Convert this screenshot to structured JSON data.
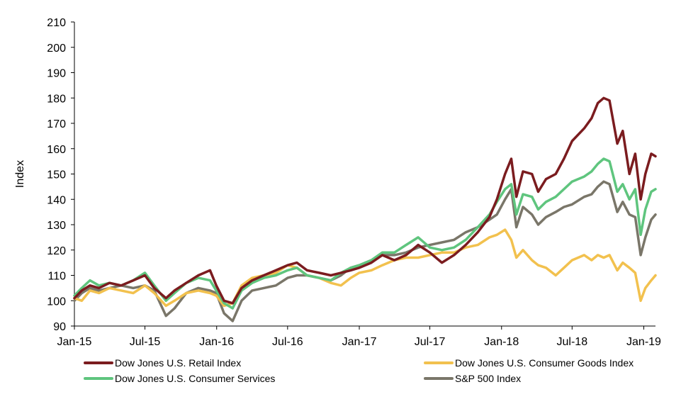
{
  "chart_data": {
    "type": "line",
    "title": "",
    "xlabel": "",
    "ylabel": "Index",
    "ylim": [
      90,
      210
    ],
    "yticks": [
      90,
      100,
      110,
      120,
      130,
      140,
      150,
      160,
      170,
      180,
      190,
      200,
      210
    ],
    "xlim": [
      "2015-01-01",
      "2019-01-31"
    ],
    "xtick_labels": [
      "Jan-15",
      "Jul-15",
      "Jan-16",
      "Jul-16",
      "Jan-17",
      "Jul-17",
      "Jan-18",
      "Jul-18",
      "Jan-19"
    ],
    "xtick_dates": [
      "2015-01-01",
      "2015-07-01",
      "2016-01-01",
      "2016-07-01",
      "2017-01-01",
      "2017-07-01",
      "2018-01-01",
      "2018-07-01",
      "2019-01-01"
    ],
    "grid": false,
    "legend_position": "bottom",
    "series": [
      {
        "name": "Dow Jones U.S. Retail Index",
        "color": "#7b1c1f",
        "points": [
          [
            "2015-01-01",
            101
          ],
          [
            "2015-01-20",
            104
          ],
          [
            "2015-02-10",
            106
          ],
          [
            "2015-03-05",
            105
          ],
          [
            "2015-04-01",
            107
          ],
          [
            "2015-05-01",
            106
          ],
          [
            "2015-06-01",
            108
          ],
          [
            "2015-07-01",
            110
          ],
          [
            "2015-07-25",
            105
          ],
          [
            "2015-08-24",
            101
          ],
          [
            "2015-09-15",
            104
          ],
          [
            "2015-10-15",
            107
          ],
          [
            "2015-11-15",
            110
          ],
          [
            "2015-12-15",
            112
          ],
          [
            "2015-12-31",
            106
          ],
          [
            "2016-01-20",
            100
          ],
          [
            "2016-02-11",
            99
          ],
          [
            "2016-03-05",
            105
          ],
          [
            "2016-04-01",
            108
          ],
          [
            "2016-05-01",
            110
          ],
          [
            "2016-06-01",
            112
          ],
          [
            "2016-07-01",
            114
          ],
          [
            "2016-07-25",
            115
          ],
          [
            "2016-08-20",
            112
          ],
          [
            "2016-09-20",
            111
          ],
          [
            "2016-10-20",
            110
          ],
          [
            "2016-11-15",
            111
          ],
          [
            "2016-12-10",
            112
          ],
          [
            "2017-01-01",
            113
          ],
          [
            "2017-02-01",
            115
          ],
          [
            "2017-03-01",
            118
          ],
          [
            "2017-04-01",
            116
          ],
          [
            "2017-05-01",
            118
          ],
          [
            "2017-06-01",
            122
          ],
          [
            "2017-07-01",
            119
          ],
          [
            "2017-08-01",
            115
          ],
          [
            "2017-09-01",
            118
          ],
          [
            "2017-10-01",
            122
          ],
          [
            "2017-11-01",
            127
          ],
          [
            "2017-12-01",
            133
          ],
          [
            "2017-12-20",
            140
          ],
          [
            "2018-01-10",
            150
          ],
          [
            "2018-01-26",
            156
          ],
          [
            "2018-02-08",
            141
          ],
          [
            "2018-02-25",
            151
          ],
          [
            "2018-03-20",
            150
          ],
          [
            "2018-04-05",
            143
          ],
          [
            "2018-04-25",
            148
          ],
          [
            "2018-05-20",
            150
          ],
          [
            "2018-06-10",
            156
          ],
          [
            "2018-07-01",
            163
          ],
          [
            "2018-08-01",
            168
          ],
          [
            "2018-08-20",
            172
          ],
          [
            "2018-09-05",
            178
          ],
          [
            "2018-09-20",
            180
          ],
          [
            "2018-10-05",
            179
          ],
          [
            "2018-10-25",
            162
          ],
          [
            "2018-11-08",
            167
          ],
          [
            "2018-11-25",
            150
          ],
          [
            "2018-12-10",
            158
          ],
          [
            "2018-12-24",
            140
          ],
          [
            "2019-01-05",
            150
          ],
          [
            "2019-01-20",
            158
          ],
          [
            "2019-01-31",
            157
          ]
        ]
      },
      {
        "name": "Dow Jones U.S. Consumer Goods Index",
        "color": "#f2c14e",
        "points": [
          [
            "2015-01-01",
            101
          ],
          [
            "2015-01-20",
            100
          ],
          [
            "2015-02-10",
            104
          ],
          [
            "2015-03-05",
            103
          ],
          [
            "2015-04-01",
            105
          ],
          [
            "2015-05-01",
            104
          ],
          [
            "2015-06-01",
            103
          ],
          [
            "2015-07-01",
            106
          ],
          [
            "2015-07-25",
            103
          ],
          [
            "2015-08-24",
            98
          ],
          [
            "2015-09-15",
            100
          ],
          [
            "2015-10-15",
            103
          ],
          [
            "2015-11-15",
            104
          ],
          [
            "2015-12-15",
            103
          ],
          [
            "2015-12-31",
            102
          ],
          [
            "2016-01-20",
            98
          ],
          [
            "2016-02-11",
            99
          ],
          [
            "2016-03-05",
            106
          ],
          [
            "2016-04-01",
            109
          ],
          [
            "2016-05-01",
            110
          ],
          [
            "2016-06-01",
            111
          ],
          [
            "2016-07-01",
            114
          ],
          [
            "2016-07-25",
            113
          ],
          [
            "2016-08-20",
            110
          ],
          [
            "2016-09-20",
            109
          ],
          [
            "2016-10-20",
            107
          ],
          [
            "2016-11-15",
            106
          ],
          [
            "2016-12-10",
            109
          ],
          [
            "2017-01-01",
            111
          ],
          [
            "2017-02-01",
            112
          ],
          [
            "2017-03-01",
            114
          ],
          [
            "2017-04-01",
            116
          ],
          [
            "2017-05-01",
            117
          ],
          [
            "2017-06-01",
            117
          ],
          [
            "2017-07-01",
            118
          ],
          [
            "2017-08-01",
            119
          ],
          [
            "2017-09-01",
            119
          ],
          [
            "2017-10-01",
            121
          ],
          [
            "2017-11-01",
            122
          ],
          [
            "2017-12-01",
            125
          ],
          [
            "2017-12-20",
            126
          ],
          [
            "2018-01-10",
            128
          ],
          [
            "2018-01-26",
            124
          ],
          [
            "2018-02-08",
            117
          ],
          [
            "2018-02-25",
            120
          ],
          [
            "2018-03-20",
            116
          ],
          [
            "2018-04-05",
            114
          ],
          [
            "2018-04-25",
            113
          ],
          [
            "2018-05-20",
            110
          ],
          [
            "2018-06-10",
            113
          ],
          [
            "2018-07-01",
            116
          ],
          [
            "2018-08-01",
            118
          ],
          [
            "2018-08-20",
            116
          ],
          [
            "2018-09-05",
            118
          ],
          [
            "2018-09-20",
            117
          ],
          [
            "2018-10-05",
            118
          ],
          [
            "2018-10-25",
            112
          ],
          [
            "2018-11-08",
            115
          ],
          [
            "2018-11-25",
            113
          ],
          [
            "2018-12-10",
            111
          ],
          [
            "2018-12-24",
            100
          ],
          [
            "2019-01-05",
            105
          ],
          [
            "2019-01-20",
            108
          ],
          [
            "2019-01-31",
            110
          ]
        ]
      },
      {
        "name": "Dow Jones U.S. Consumer Services",
        "color": "#5fc57e",
        "points": [
          [
            "2015-01-01",
            102
          ],
          [
            "2015-01-20",
            105
          ],
          [
            "2015-02-10",
            108
          ],
          [
            "2015-03-05",
            106
          ],
          [
            "2015-04-01",
            107
          ],
          [
            "2015-05-01",
            106
          ],
          [
            "2015-06-01",
            108
          ],
          [
            "2015-07-01",
            111
          ],
          [
            "2015-07-25",
            106
          ],
          [
            "2015-08-24",
            100
          ],
          [
            "2015-09-15",
            103
          ],
          [
            "2015-10-15",
            107
          ],
          [
            "2015-11-15",
            109
          ],
          [
            "2015-12-15",
            108
          ],
          [
            "2015-12-31",
            104
          ],
          [
            "2016-01-20",
            99
          ],
          [
            "2016-02-11",
            97
          ],
          [
            "2016-03-05",
            104
          ],
          [
            "2016-04-01",
            107
          ],
          [
            "2016-05-01",
            109
          ],
          [
            "2016-06-01",
            110
          ],
          [
            "2016-07-01",
            112
          ],
          [
            "2016-07-25",
            113
          ],
          [
            "2016-08-20",
            110
          ],
          [
            "2016-09-20",
            109
          ],
          [
            "2016-10-20",
            108
          ],
          [
            "2016-11-15",
            111
          ],
          [
            "2016-12-10",
            113
          ],
          [
            "2017-01-01",
            114
          ],
          [
            "2017-02-01",
            116
          ],
          [
            "2017-03-01",
            119
          ],
          [
            "2017-04-01",
            119
          ],
          [
            "2017-05-01",
            122
          ],
          [
            "2017-06-01",
            125
          ],
          [
            "2017-07-01",
            121
          ],
          [
            "2017-08-01",
            120
          ],
          [
            "2017-09-01",
            121
          ],
          [
            "2017-10-01",
            124
          ],
          [
            "2017-11-01",
            129
          ],
          [
            "2017-12-01",
            134
          ],
          [
            "2017-12-20",
            139
          ],
          [
            "2018-01-10",
            144
          ],
          [
            "2018-01-26",
            146
          ],
          [
            "2018-02-08",
            134
          ],
          [
            "2018-02-25",
            142
          ],
          [
            "2018-03-20",
            141
          ],
          [
            "2018-04-05",
            136
          ],
          [
            "2018-04-25",
            139
          ],
          [
            "2018-05-20",
            141
          ],
          [
            "2018-06-10",
            144
          ],
          [
            "2018-07-01",
            147
          ],
          [
            "2018-08-01",
            149
          ],
          [
            "2018-08-20",
            151
          ],
          [
            "2018-09-05",
            154
          ],
          [
            "2018-09-20",
            156
          ],
          [
            "2018-10-05",
            155
          ],
          [
            "2018-10-25",
            143
          ],
          [
            "2018-11-08",
            146
          ],
          [
            "2018-11-25",
            140
          ],
          [
            "2018-12-10",
            144
          ],
          [
            "2018-12-24",
            126
          ],
          [
            "2019-01-05",
            136
          ],
          [
            "2019-01-20",
            143
          ],
          [
            "2019-01-31",
            144
          ]
        ]
      },
      {
        "name": "S&P 500 Index",
        "color": "#7a7669",
        "points": [
          [
            "2015-01-01",
            100
          ],
          [
            "2015-01-20",
            103
          ],
          [
            "2015-02-10",
            105
          ],
          [
            "2015-03-05",
            104
          ],
          [
            "2015-04-01",
            105
          ],
          [
            "2015-05-01",
            106
          ],
          [
            "2015-06-01",
            105
          ],
          [
            "2015-07-01",
            106
          ],
          [
            "2015-07-25",
            104
          ],
          [
            "2015-08-24",
            94
          ],
          [
            "2015-09-15",
            97
          ],
          [
            "2015-10-15",
            103
          ],
          [
            "2015-11-15",
            105
          ],
          [
            "2015-12-15",
            104
          ],
          [
            "2015-12-31",
            103
          ],
          [
            "2016-01-20",
            95
          ],
          [
            "2016-02-11",
            92
          ],
          [
            "2016-03-05",
            100
          ],
          [
            "2016-04-01",
            104
          ],
          [
            "2016-05-01",
            105
          ],
          [
            "2016-06-01",
            106
          ],
          [
            "2016-07-01",
            109
          ],
          [
            "2016-07-25",
            110
          ],
          [
            "2016-08-20",
            110
          ],
          [
            "2016-09-20",
            109
          ],
          [
            "2016-10-20",
            108
          ],
          [
            "2016-11-15",
            110
          ],
          [
            "2016-12-10",
            113
          ],
          [
            "2017-01-01",
            114
          ],
          [
            "2017-02-01",
            116
          ],
          [
            "2017-03-01",
            118
          ],
          [
            "2017-04-01",
            118
          ],
          [
            "2017-05-01",
            119
          ],
          [
            "2017-06-01",
            121
          ],
          [
            "2017-07-01",
            122
          ],
          [
            "2017-08-01",
            123
          ],
          [
            "2017-09-01",
            124
          ],
          [
            "2017-10-01",
            127
          ],
          [
            "2017-11-01",
            129
          ],
          [
            "2017-12-01",
            132
          ],
          [
            "2017-12-20",
            134
          ],
          [
            "2018-01-10",
            140
          ],
          [
            "2018-01-26",
            144
          ],
          [
            "2018-02-08",
            129
          ],
          [
            "2018-02-25",
            137
          ],
          [
            "2018-03-20",
            134
          ],
          [
            "2018-04-05",
            130
          ],
          [
            "2018-04-25",
            133
          ],
          [
            "2018-05-20",
            135
          ],
          [
            "2018-06-10",
            137
          ],
          [
            "2018-07-01",
            138
          ],
          [
            "2018-08-01",
            141
          ],
          [
            "2018-08-20",
            142
          ],
          [
            "2018-09-05",
            145
          ],
          [
            "2018-09-20",
            147
          ],
          [
            "2018-10-05",
            146
          ],
          [
            "2018-10-25",
            135
          ],
          [
            "2018-11-08",
            139
          ],
          [
            "2018-11-25",
            134
          ],
          [
            "2018-12-10",
            133
          ],
          [
            "2018-12-24",
            118
          ],
          [
            "2019-01-05",
            125
          ],
          [
            "2019-01-20",
            132
          ],
          [
            "2019-01-31",
            134
          ]
        ]
      }
    ]
  }
}
